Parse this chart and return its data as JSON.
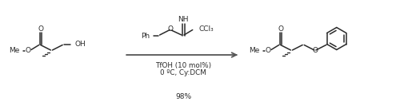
{
  "background_color": "#ffffff",
  "line_color": "#2a2a2a",
  "conditions_line1": "TfOH (10 mol%)",
  "conditions_line2": "0 ºC, Cy:DCM",
  "yield_text": "98%",
  "figsize": [
    5.0,
    1.37
  ],
  "dpi": 100
}
